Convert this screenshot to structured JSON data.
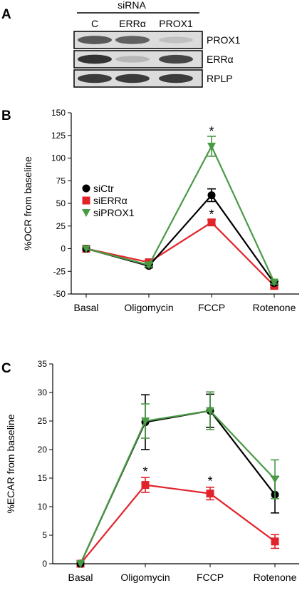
{
  "panel_a": {
    "label": "A",
    "header": "siRNA",
    "lanes": [
      "C",
      "ERRα",
      "PROX1"
    ],
    "bands": [
      {
        "name": "PROX1",
        "intensity": [
          0.75,
          0.7,
          0.2
        ]
      },
      {
        "name": "ERRα",
        "intensity": [
          0.95,
          0.25,
          0.85
        ]
      },
      {
        "name": "RPLP",
        "intensity": [
          0.9,
          0.9,
          0.9
        ]
      }
    ]
  },
  "panel_b_label": "B",
  "panel_c_label": "C",
  "colors": {
    "siCtr": "#000000",
    "siERRa": "#e2232a",
    "siPROX1": "#4a9a45"
  },
  "chart_data": [
    {
      "type": "line",
      "categories": [
        "Basal",
        "Oligomycin",
        "FCCP",
        "Rotenone"
      ],
      "ylabel": "%OCR from baseline",
      "ylim": [
        -50,
        150
      ],
      "yticks": [
        -50,
        -25,
        0,
        25,
        50,
        75,
        100,
        125,
        150
      ],
      "legend": "left",
      "series": [
        {
          "name": "siCtr",
          "values": [
            0,
            -19,
            59,
            -38
          ],
          "errors": [
            0,
            2,
            7,
            2
          ],
          "marker": "circle"
        },
        {
          "name": "siERRα",
          "values": [
            0,
            -15,
            29,
            -41
          ],
          "errors": [
            0,
            2,
            3,
            2
          ],
          "marker": "square"
        },
        {
          "name": "siPROX1",
          "values": [
            0,
            -18,
            113,
            -37
          ],
          "errors": [
            0,
            2,
            11,
            2
          ],
          "marker": "triangle-down"
        }
      ],
      "annotations": [
        {
          "text": "*",
          "category": "FCCP",
          "y": 132
        },
        {
          "text": "*",
          "category": "FCCP",
          "y": 40
        }
      ]
    },
    {
      "type": "line",
      "categories": [
        "Basal",
        "Oligomycin",
        "FCCP",
        "Rotenone"
      ],
      "ylabel": "%ECAR from baseline",
      "ylim": [
        0,
        35
      ],
      "yticks": [
        0,
        5,
        10,
        15,
        20,
        25,
        30,
        35
      ],
      "series": [
        {
          "name": "siCtr",
          "values": [
            0,
            24.8,
            26.8,
            12.1
          ],
          "errors": [
            0,
            4.8,
            2.9,
            3.2
          ],
          "marker": "circle"
        },
        {
          "name": "siERRα",
          "values": [
            0,
            13.8,
            12.3,
            3.9
          ],
          "errors": [
            0,
            1.3,
            1.1,
            1.2
          ],
          "marker": "square"
        },
        {
          "name": "siPROX1",
          "values": [
            0,
            25.0,
            26.8,
            14.8
          ],
          "errors": [
            0,
            3.0,
            3.3,
            3.4
          ],
          "marker": "triangle-down"
        }
      ],
      "annotations": [
        {
          "text": "*",
          "category": "Oligomycin",
          "y": 16.5
        },
        {
          "text": "*",
          "category": "FCCP",
          "y": 14.8
        }
      ]
    }
  ]
}
